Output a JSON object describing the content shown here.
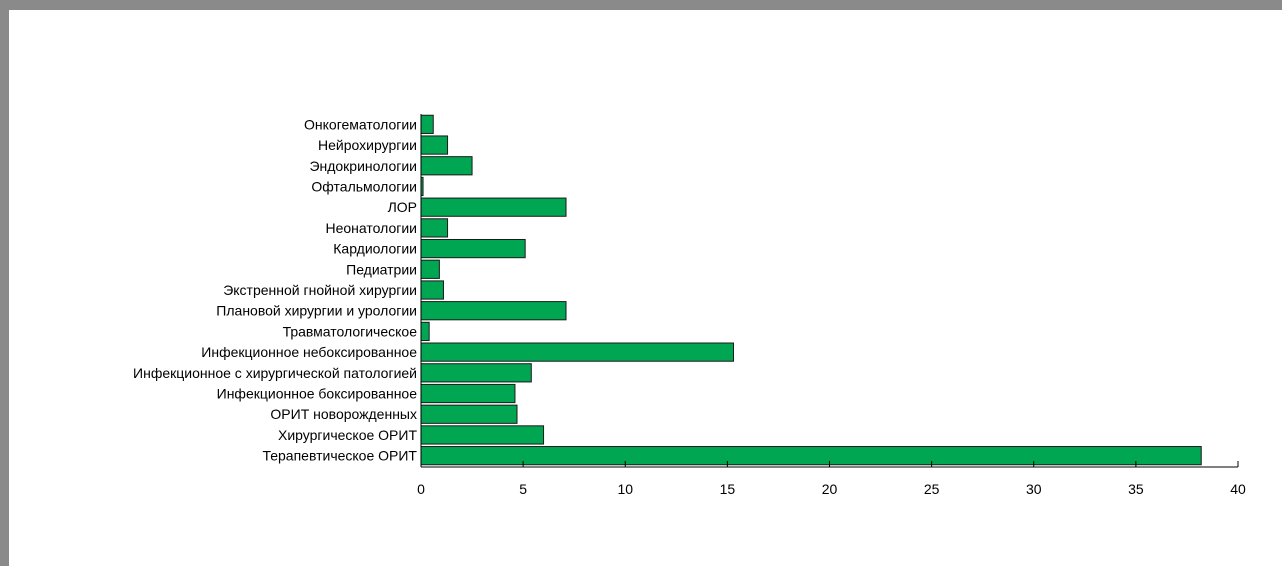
{
  "colors": {
    "bar": "#00a651",
    "bar_stroke": "#1a1a1a",
    "axis": "#000000",
    "frame": "#8a8a8a"
  },
  "chart_data": {
    "type": "bar",
    "orientation": "horizontal",
    "title": "",
    "xlabel": "",
    "ylabel": "",
    "grid": false,
    "legend": "none",
    "xlim": [
      0,
      40
    ],
    "x_ticks": [
      "0",
      "5",
      "10",
      "15",
      "20",
      "25",
      "30",
      "35",
      "40"
    ],
    "categories": [
      "Онкогематологии",
      "Нейрохирургии",
      "Эндокринологии",
      "Офтальмологии",
      "ЛОР",
      "Неонатологии",
      "Кардиологии",
      "Педиатрии",
      "Экстренной гнойной хирургии",
      "Плановой хирургии и урологии",
      "Травматологическое",
      "Инфекционное небоксированное",
      "Инфекционное с хирургической патологией",
      "Инфекционное боксированное",
      "ОРИТ новорожденных",
      "Хирургическое ОРИТ",
      "Терапевтическое ОРИТ"
    ],
    "values": [
      0.6,
      1.3,
      2.5,
      0.1,
      7.1,
      1.3,
      5.1,
      0.9,
      1.1,
      7.1,
      0.4,
      15.3,
      5.4,
      4.6,
      4.7,
      6.0,
      38.2
    ]
  }
}
